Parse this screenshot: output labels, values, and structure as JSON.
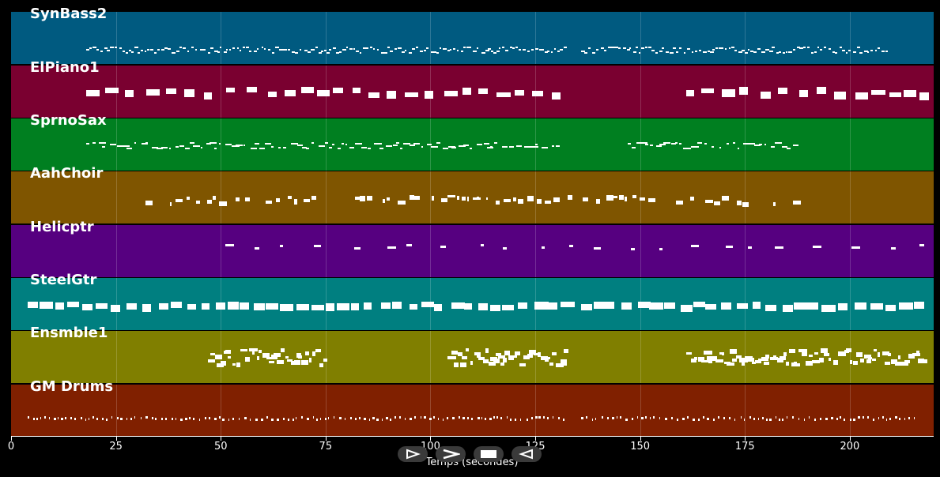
{
  "tracks": [
    {
      "label": "SynBass2",
      "color": "#005a80",
      "pattern": "bass",
      "ranges": [
        [
          18,
          132
        ],
        [
          136,
          209
        ]
      ]
    },
    {
      "label": "ElPiano1",
      "color": "#7a0030",
      "pattern": "blocks",
      "ranges": [
        [
          18,
          132
        ],
        [
          161,
          218
        ]
      ]
    },
    {
      "label": "SprnoSax",
      "color": "#007f20",
      "pattern": "sparse",
      "ranges": [
        [
          18,
          131
        ],
        [
          147,
          188
        ]
      ]
    },
    {
      "label": "AahChoir",
      "color": "#7f5500",
      "pattern": "choir",
      "ranges": [
        [
          32,
          73
        ],
        [
          82,
          188
        ]
      ]
    },
    {
      "label": "Helicptr",
      "color": "#560080",
      "pattern": "heli",
      "ranges": [
        [
          51,
          220
        ]
      ]
    },
    {
      "label": "SteelGtr",
      "color": "#007f80",
      "pattern": "blocks2",
      "ranges": [
        [
          4,
          132
        ],
        [
          136,
          218
        ]
      ]
    },
    {
      "label": "Ensmble1",
      "color": "#807f00",
      "pattern": "ensemble",
      "ranges": [
        [
          47,
          75
        ],
        [
          104,
          132
        ],
        [
          161,
          218
        ]
      ]
    },
    {
      "label": "GM Drums",
      "color": "#802000",
      "pattern": "drums",
      "ranges": [
        [
          4,
          132
        ],
        [
          136,
          216
        ]
      ]
    }
  ],
  "axis": {
    "label": "Temps (secondes)",
    "ticks": [
      0,
      25,
      50,
      75,
      100,
      125,
      150,
      175,
      200
    ],
    "xlim": [
      0,
      220
    ]
  },
  "controls": [
    {
      "name": "play-button",
      "icon": "play-icon"
    },
    {
      "name": "fast-forward-button",
      "icon": "fast-forward-icon"
    },
    {
      "name": "stop-button",
      "icon": "stop-icon"
    },
    {
      "name": "rewind-button",
      "icon": "rewind-icon"
    }
  ]
}
